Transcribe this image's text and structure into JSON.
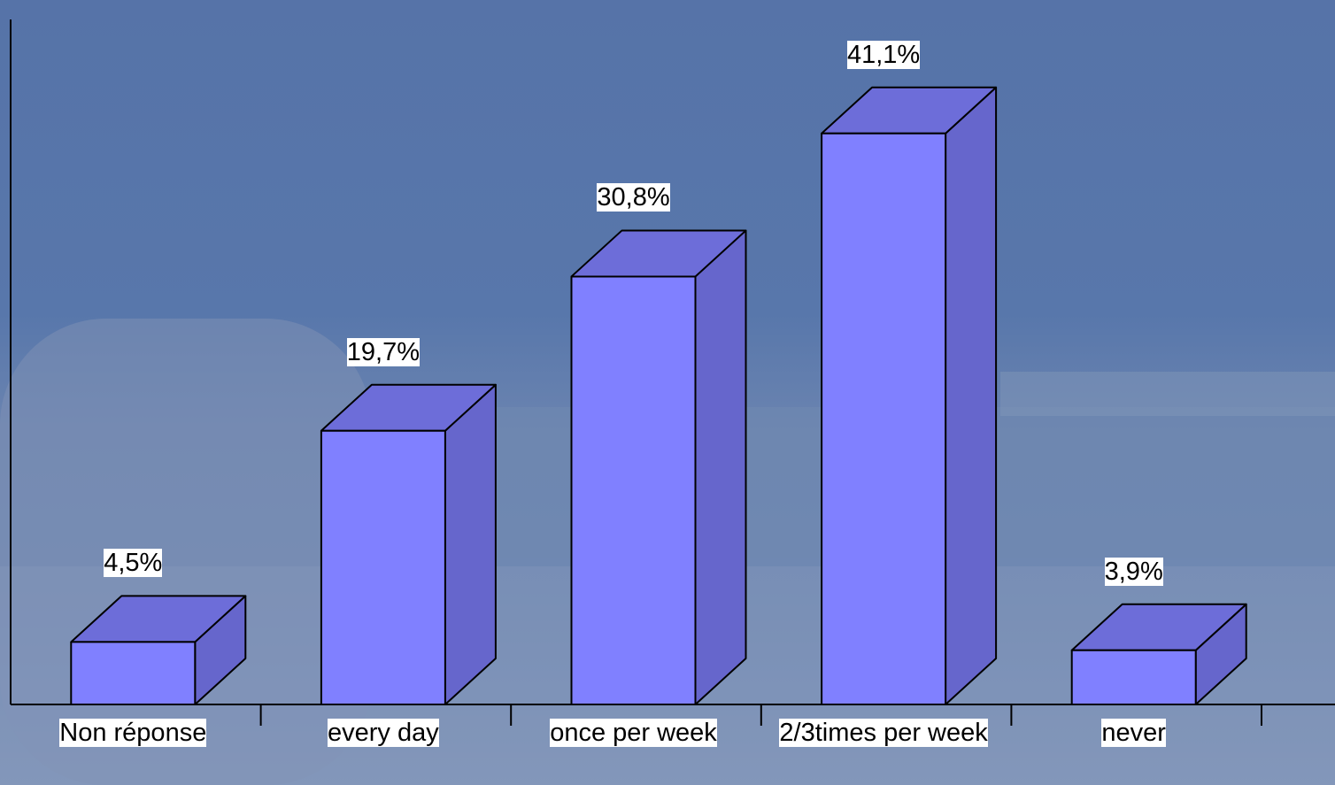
{
  "chart_data": {
    "type": "bar3d",
    "categories": [
      "Non réponse",
      "every day",
      "once per week",
      "2/3times per week",
      "never"
    ],
    "values": [
      4.5,
      19.7,
      30.8,
      41.1,
      3.9
    ],
    "value_labels": [
      "4,5%",
      "19,7%",
      "30,8%",
      "41,1%",
      "3,9%"
    ],
    "color": "#8080ff"
  }
}
